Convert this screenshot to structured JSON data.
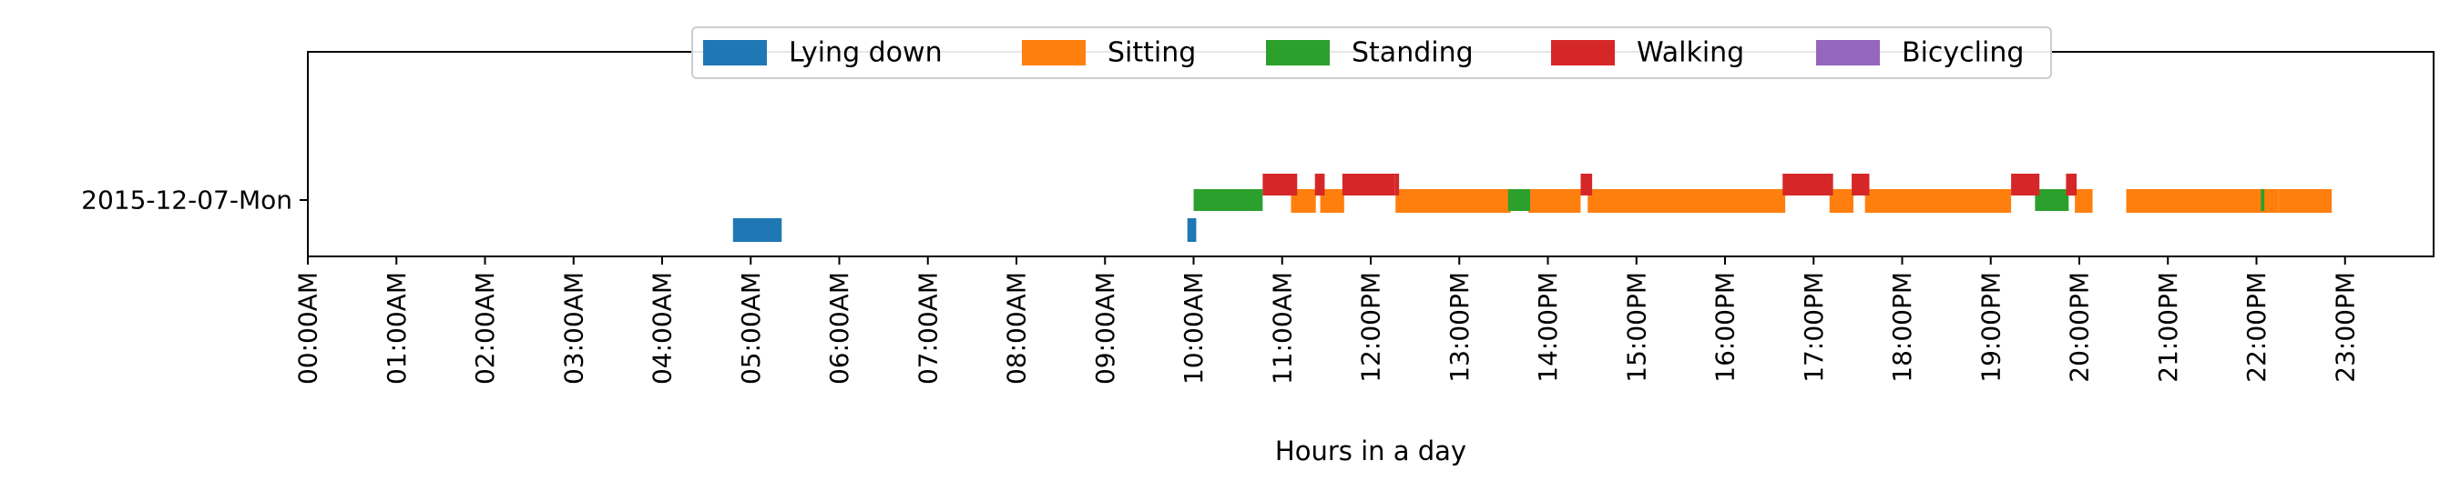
{
  "chart_data": {
    "type": "timeline",
    "title": "",
    "xlabel": "Hours in a day",
    "ylabel": "",
    "xlim": [
      0,
      24
    ],
    "x_ticks": [
      {
        "value": 0,
        "label": "00:00AM"
      },
      {
        "value": 1,
        "label": "01:00AM"
      },
      {
        "value": 2,
        "label": "02:00AM"
      },
      {
        "value": 3,
        "label": "03:00AM"
      },
      {
        "value": 4,
        "label": "04:00AM"
      },
      {
        "value": 5,
        "label": "05:00AM"
      },
      {
        "value": 6,
        "label": "06:00AM"
      },
      {
        "value": 7,
        "label": "07:00AM"
      },
      {
        "value": 8,
        "label": "08:00AM"
      },
      {
        "value": 9,
        "label": "09:00AM"
      },
      {
        "value": 10,
        "label": "10:00AM"
      },
      {
        "value": 11,
        "label": "11:00AM"
      },
      {
        "value": 12,
        "label": "12:00PM"
      },
      {
        "value": 13,
        "label": "13:00PM"
      },
      {
        "value": 14,
        "label": "14:00PM"
      },
      {
        "value": 15,
        "label": "15:00PM"
      },
      {
        "value": 16,
        "label": "16:00PM"
      },
      {
        "value": 17,
        "label": "17:00PM"
      },
      {
        "value": 18,
        "label": "18:00PM"
      },
      {
        "value": 19,
        "label": "19:00PM"
      },
      {
        "value": 20,
        "label": "20:00PM"
      },
      {
        "value": 21,
        "label": "21:00PM"
      },
      {
        "value": 22,
        "label": "22:00PM"
      },
      {
        "value": 23,
        "label": "23:00PM"
      }
    ],
    "y_categories": [
      "2015-12-07-Mon"
    ],
    "legend_position": "top-center",
    "grid": false,
    "series": [
      {
        "name": "Lying down",
        "color": "#1f77b4",
        "lane": 0,
        "intervals": [
          [
            4.8,
            5.35
          ],
          [
            9.93,
            10.03
          ]
        ]
      },
      {
        "name": "Sitting",
        "color": "#ff7f0e",
        "lane": 1,
        "intervals": [
          [
            11.1,
            11.38
          ],
          [
            11.43,
            11.7
          ],
          [
            12.28,
            13.58
          ],
          [
            13.78,
            14.37
          ],
          [
            14.45,
            16.68
          ],
          [
            17.18,
            17.45
          ],
          [
            17.58,
            19.23
          ],
          [
            19.95,
            20.15
          ],
          [
            20.53,
            22.25
          ],
          [
            22.25,
            22.85
          ]
        ]
      },
      {
        "name": "Standing",
        "color": "#2ca02c",
        "lane": 2,
        "intervals": [
          [
            10.0,
            10.78
          ],
          [
            13.55,
            13.8
          ],
          [
            19.5,
            19.88
          ],
          [
            22.05,
            22.09
          ]
        ]
      },
      {
        "name": "Walking",
        "color": "#d62728",
        "lane": 3,
        "intervals": [
          [
            10.78,
            11.17
          ],
          [
            11.37,
            11.48
          ],
          [
            11.68,
            12.27
          ],
          [
            12.27,
            12.32
          ],
          [
            14.37,
            14.5
          ],
          [
            16.65,
            17.22
          ],
          [
            17.43,
            17.63
          ],
          [
            19.23,
            19.55
          ],
          [
            19.85,
            19.97
          ]
        ]
      },
      {
        "name": "Bicycling",
        "color": "#9467bd",
        "lane": 4,
        "intervals": []
      }
    ]
  }
}
